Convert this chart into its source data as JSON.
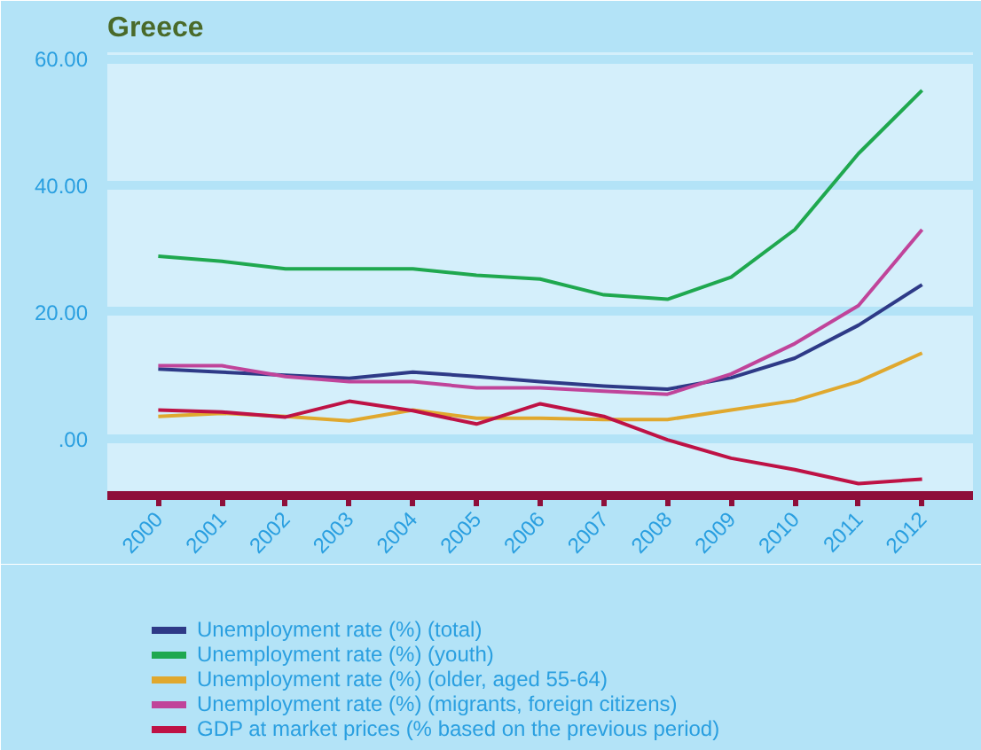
{
  "chart_data": {
    "type": "line",
    "title": "Greece",
    "categories": [
      "2000",
      "2001",
      "2002",
      "2003",
      "2004",
      "2005",
      "2006",
      "2007",
      "2008",
      "2009",
      "2010",
      "2011",
      "2012"
    ],
    "series": [
      {
        "name": "Unemployment rate (%) (total)",
        "color": "#2e3a87",
        "values": [
          11,
          10.5,
          10,
          9.5,
          10.5,
          9.8,
          9,
          8.3,
          7.8,
          9.6,
          12.7,
          17.9,
          24.3
        ]
      },
      {
        "name": "Unemployment rate (%) (youth)",
        "color": "#1fa84f",
        "values": [
          28.8,
          28,
          26.8,
          26.8,
          26.8,
          25.8,
          25.2,
          22.7,
          22,
          25.5,
          33,
          45,
          55
        ]
      },
      {
        "name": "Unemployment rate (%) (older, aged 55-64)",
        "color": "#e0a82e",
        "values": [
          3.5,
          4,
          3.5,
          2.8,
          4.5,
          3.2,
          3.2,
          3,
          3,
          4.5,
          6,
          9,
          13.5
        ]
      },
      {
        "name": "Unemployment rate (%) (migrants, foreign citizens)",
        "color": "#c0449a",
        "values": [
          11.5,
          11.5,
          9.8,
          9,
          9,
          8,
          8,
          7.5,
          7,
          10.2,
          15,
          21,
          33
        ]
      },
      {
        "name": "GDP at market prices (% based on the previous period)",
        "color": "#be1245",
        "values": [
          4.5,
          4.2,
          3.4,
          5.9,
          4.4,
          2.3,
          5.5,
          3.5,
          -0.2,
          -3.1,
          -4.9,
          -7.1,
          -6.4
        ]
      }
    ],
    "ylim": [
      -9,
      61
    ],
    "yticks": [
      {
        "value": 0,
        "label": ".00"
      },
      {
        "value": 20,
        "label": "20.00"
      },
      {
        "value": 40,
        "label": "40.00"
      },
      {
        "value": 60,
        "label": "60.00"
      }
    ],
    "grid": "y",
    "legend": "bottom",
    "marker": "none",
    "line_style": "solid"
  }
}
